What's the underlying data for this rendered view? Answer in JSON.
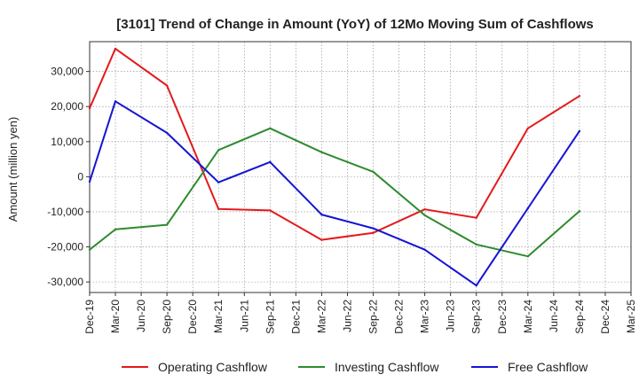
{
  "chart_data": {
    "type": "line",
    "title": "[3101]  Trend of Change in Amount (YoY) of 12Mo Moving Sum of Cashflows",
    "xlabel": "",
    "ylabel": "Amount (million yen)",
    "ylim": [
      -33000,
      38500
    ],
    "yticks": [
      -30000,
      -20000,
      -10000,
      0,
      10000,
      20000,
      30000
    ],
    "ytick_labels": [
      "-30,000",
      "-20,000",
      "-10,000",
      "0",
      "10,000",
      "20,000",
      "30,000"
    ],
    "categories": [
      "Dec-19",
      "Mar-20",
      "Jun-20",
      "Sep-20",
      "Dec-20",
      "Mar-21",
      "Jun-21",
      "Sep-21",
      "Dec-21",
      "Mar-22",
      "Jun-22",
      "Sep-22",
      "Dec-22",
      "Mar-23",
      "Jun-23",
      "Sep-23",
      "Dec-23",
      "Mar-24",
      "Jun-24",
      "Sep-24",
      "Dec-24",
      "Mar-25"
    ],
    "grid": true,
    "legend_position": "bottom",
    "series": [
      {
        "name": "Operating Cashflow",
        "color": "#e41a1c",
        "values": [
          19500,
          36500,
          null,
          26000,
          null,
          -9200,
          null,
          -9600,
          null,
          -18000,
          null,
          -16000,
          null,
          -9300,
          null,
          -11700,
          null,
          13800,
          null,
          23000,
          null,
          null
        ]
      },
      {
        "name": "Investing Cashflow",
        "color": "#2e8b2e",
        "values": [
          -20800,
          -15000,
          null,
          -13700,
          null,
          7600,
          null,
          13800,
          null,
          7000,
          null,
          1400,
          null,
          -11000,
          null,
          -19300,
          null,
          -22700,
          null,
          -9800,
          null,
          null
        ]
      },
      {
        "name": "Free Cashflow",
        "color": "#1414d2",
        "values": [
          -1400,
          21500,
          null,
          12500,
          null,
          -1600,
          null,
          4200,
          null,
          -10800,
          null,
          -14700,
          null,
          -20800,
          null,
          -31000,
          null,
          -9000,
          null,
          13000,
          null,
          null
        ]
      }
    ]
  }
}
